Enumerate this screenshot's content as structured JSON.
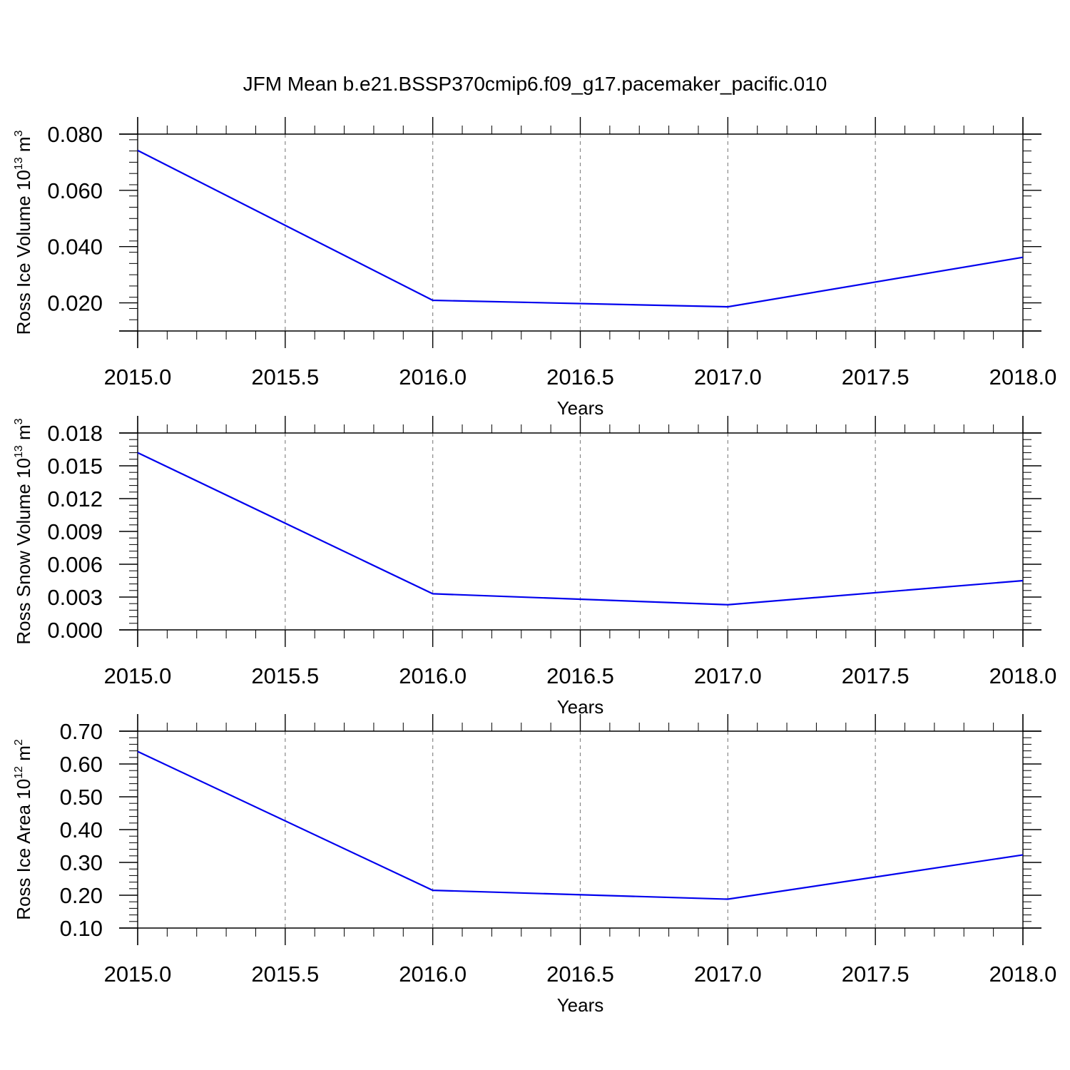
{
  "title": "JFM Mean b.e21.BSSP370cmip6.f09_g17.pacemaker_pacific.010",
  "colors": {
    "line": "#0000ee",
    "axis": "#000000",
    "grid": "#888888"
  },
  "chart_data": [
    {
      "type": "line",
      "ylabel": "Ross Ice Volume 10",
      "ylabel_exp": "13",
      "ylabel_unit": " m",
      "ylabel_unit_exp": "3",
      "xlabel": "Years",
      "xlim": [
        2015,
        2018
      ],
      "ylim": [
        0.01,
        0.08
      ],
      "yticks": [
        "0.080",
        "0.060",
        "0.040",
        "0.020"
      ],
      "ytick_values": [
        0.08,
        0.06,
        0.04,
        0.02
      ],
      "ytick_extra": [
        0.01
      ],
      "xticks": [
        "2015.0",
        "2015.5",
        "2016.0",
        "2016.5",
        "2017.0",
        "2017.5",
        "2018.0"
      ],
      "xtick_values": [
        2015,
        2015.5,
        2016,
        2016.5,
        2017,
        2017.5,
        2018
      ],
      "x": [
        2015,
        2016,
        2017,
        2018
      ],
      "series": [
        {
          "values": [
            0.0742,
            0.0209,
            0.0186,
            0.0362
          ]
        }
      ],
      "grid": "vertical dashed"
    },
    {
      "type": "line",
      "ylabel": "Ross Snow Volume 10",
      "ylabel_exp": "13",
      "ylabel_unit": " m",
      "ylabel_unit_exp": "3",
      "xlabel": "Years",
      "xlim": [
        2015,
        2018
      ],
      "ylim": [
        0.0,
        0.018
      ],
      "yticks": [
        "0.018",
        "0.015",
        "0.012",
        "0.009",
        "0.006",
        "0.003",
        "0.000"
      ],
      "ytick_values": [
        0.018,
        0.015,
        0.012,
        0.009,
        0.006,
        0.003,
        0.0
      ],
      "ytick_extra": [],
      "xticks": [
        "2015.0",
        "2015.5",
        "2016.0",
        "2016.5",
        "2017.0",
        "2017.5",
        "2018.0"
      ],
      "xtick_values": [
        2015,
        2015.5,
        2016,
        2016.5,
        2017,
        2017.5,
        2018
      ],
      "x": [
        2015,
        2016,
        2017,
        2018
      ],
      "series": [
        {
          "values": [
            0.0162,
            0.0033,
            0.0023,
            0.0045
          ]
        }
      ],
      "grid": "vertical dashed"
    },
    {
      "type": "line",
      "ylabel": "Ross Ice Area 10",
      "ylabel_exp": "12",
      "ylabel_unit": " m",
      "ylabel_unit_exp": "2",
      "xlabel": "Years",
      "xlim": [
        2015,
        2018
      ],
      "ylim": [
        0.1,
        0.7
      ],
      "yticks": [
        "0.70",
        "0.60",
        "0.50",
        "0.40",
        "0.30",
        "0.20",
        "0.10"
      ],
      "ytick_values": [
        0.7,
        0.6,
        0.5,
        0.4,
        0.3,
        0.2,
        0.1
      ],
      "ytick_extra": [],
      "xticks": [
        "2015.0",
        "2015.5",
        "2016.0",
        "2016.5",
        "2017.0",
        "2017.5",
        "2018.0"
      ],
      "xtick_values": [
        2015,
        2015.5,
        2016,
        2016.5,
        2017,
        2017.5,
        2018
      ],
      "x": [
        2015,
        2016,
        2017,
        2018
      ],
      "series": [
        {
          "values": [
            0.638,
            0.215,
            0.188,
            0.323
          ]
        }
      ],
      "grid": "vertical dashed"
    }
  ]
}
